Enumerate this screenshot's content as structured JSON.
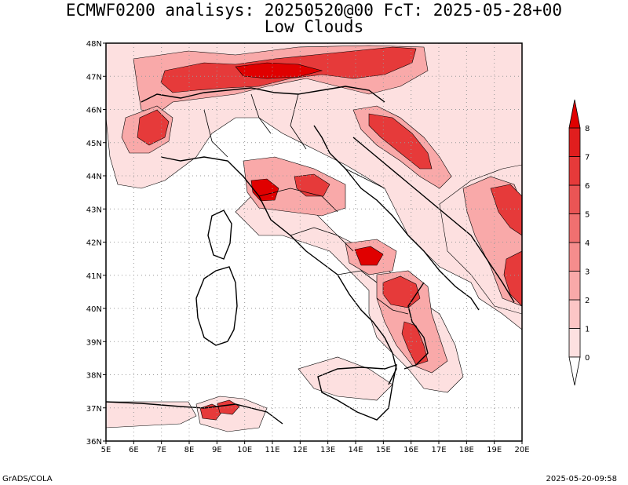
{
  "title": {
    "line1": "ECMWF0200 analisys: 20250520@00 FcT: 2025-05-28+00",
    "line2": "Low Clouds"
  },
  "axes": {
    "lon_labels": [
      "5E",
      "6E",
      "7E",
      "8E",
      "9E",
      "10E",
      "11E",
      "12E",
      "13E",
      "14E",
      "15E",
      "16E",
      "17E",
      "18E",
      "19E",
      "20E"
    ],
    "lat_labels": [
      "36N",
      "37N",
      "38N",
      "39N",
      "40N",
      "41N",
      "42N",
      "43N",
      "44N",
      "45N",
      "46N",
      "47N",
      "48N"
    ],
    "lon_range": [
      5,
      20
    ],
    "lat_range": [
      36,
      48
    ]
  },
  "colorbar": {
    "labels": [
      "0",
      "1",
      "2",
      "3",
      "4",
      "5",
      "6",
      "7",
      "8"
    ],
    "colors": [
      "#fde0e0",
      "#fcc6c6",
      "#f9a9a9",
      "#f58d8d",
      "#f07070",
      "#ea5555",
      "#e63a3a",
      "#e01e1e",
      "#e00000"
    ]
  },
  "footer": {
    "left": "GrADS/COLA",
    "right": "2025-05-20-09:58"
  }
}
